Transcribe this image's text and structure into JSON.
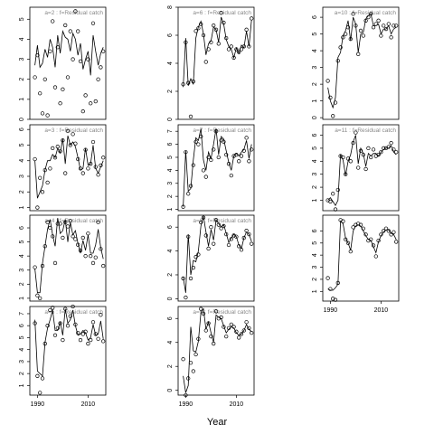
{
  "xlabel": "Year",
  "chart_data": [
    {
      "type": "scatter",
      "title": "a=2  :  f=Residual catch",
      "xlim": [
        1987,
        2017
      ],
      "ylim": [
        0,
        5.6
      ],
      "yticks": [
        0,
        1,
        2,
        3,
        4,
        5
      ],
      "x": [
        1989,
        1990,
        1991,
        1992,
        1993,
        1994,
        1995,
        1996,
        1997,
        1998,
        1999,
        2000,
        2001,
        2002,
        2003,
        2004,
        2005,
        2006,
        2007,
        2008,
        2009,
        2010,
        2011,
        2012,
        2013,
        2014,
        2015,
        2016
      ],
      "values": [
        2.1,
        3.2,
        1.3,
        0.3,
        2.0,
        0.2,
        3.4,
        4.9,
        1.6,
        3.6,
        0.8,
        1.5,
        4.7,
        2.1,
        4.4,
        3.0,
        5.4,
        4.4,
        2.9,
        0.4,
        1.2,
        3.0,
        0.8,
        4.8,
        0.9,
        2.0,
        2.6,
        3.4
      ],
      "fitted": [
        2.7,
        3.7,
        2.6,
        2.8,
        3.5,
        3.1,
        4.0,
        3.6,
        2.6,
        4.2,
        3.3,
        4.4,
        4.1,
        4.0,
        3.4,
        4.3,
        4.0,
        3.2,
        3.8,
        2.5,
        3.0,
        3.4,
        2.2,
        4.2,
        3.4,
        2.7,
        3.3,
        3.6
      ]
    },
    {
      "type": "scatter",
      "title": "a=3  :  f=Residual catch",
      "xlim": [
        1987,
        2017
      ],
      "ylim": [
        0.8,
        6.3
      ],
      "yticks": [
        1,
        2,
        3,
        4,
        5,
        6
      ],
      "x": [
        1989,
        1990,
        1991,
        1992,
        1993,
        1994,
        1995,
        1996,
        1997,
        1998,
        1999,
        2000,
        2001,
        2002,
        2003,
        2004,
        2005,
        2006,
        2007,
        2008,
        2009,
        2010,
        2011,
        2012,
        2013,
        2014,
        2015,
        2016
      ],
      "values": [
        4.1,
        1.0,
        2.9,
        2.0,
        3.4,
        2.6,
        3.5,
        4.8,
        4.2,
        4.9,
        4.6,
        5.3,
        3.2,
        5.9,
        5.0,
        5.7,
        5.1,
        4.1,
        3.5,
        3.2,
        4.7,
        3.5,
        3.8,
        5.2,
        3.6,
        3.1,
        3.7,
        4.2
      ],
      "fitted": [
        4.0,
        1.6,
        2.0,
        2.4,
        3.4,
        4.0,
        4.0,
        4.4,
        4.2,
        4.8,
        4.5,
        5.4,
        3.8,
        5.6,
        5.0,
        5.2,
        4.9,
        4.2,
        3.4,
        3.5,
        4.8,
        3.7,
        3.8,
        5.0,
        3.5,
        3.2,
        3.6,
        4.0
      ]
    },
    {
      "type": "scatter",
      "title": "a=4  :  f=Residual catch",
      "xlim": [
        1987,
        2017
      ],
      "ylim": [
        0.8,
        6.9
      ],
      "yticks": [
        1,
        2,
        3,
        4,
        5,
        6
      ],
      "x": [
        1989,
        1990,
        1991,
        1992,
        1993,
        1994,
        1995,
        1996,
        1997,
        1998,
        1999,
        2000,
        2001,
        2002,
        2003,
        2004,
        2005,
        2006,
        2007,
        2008,
        2009,
        2010,
        2011,
        2012,
        2013,
        2014,
        2015,
        2016
      ],
      "values": [
        3.2,
        1.2,
        1.0,
        3.3,
        4.7,
        6.4,
        6.0,
        5.4,
        3.5,
        6.3,
        6.3,
        5.3,
        6.4,
        6.1,
        6.5,
        5.4,
        5.2,
        4.8,
        4.4,
        5.3,
        4.0,
        5.6,
        4.0,
        3.5,
        3.9,
        6.4,
        4.5,
        3.3
      ],
      "fitted": [
        3.1,
        1.4,
        1.4,
        3.5,
        4.7,
        5.9,
        6.6,
        5.5,
        4.7,
        6.7,
        5.6,
        5.8,
        6.6,
        5.0,
        6.4,
        5.5,
        5.8,
        4.9,
        4.2,
        5.1,
        4.4,
        5.5,
        4.2,
        4.2,
        4.8,
        5.9,
        4.6,
        3.8
      ]
    },
    {
      "type": "scatter",
      "title": "a=5  :  f=Residual catch",
      "xlim": [
        1987,
        2017
      ],
      "ylim": [
        0.2,
        7.6
      ],
      "yticks": [
        1,
        2,
        3,
        4,
        5,
        6,
        7
      ],
      "xticks": [
        1990,
        2010
      ],
      "x": [
        1989,
        1990,
        1991,
        1992,
        1993,
        1994,
        1995,
        1996,
        1997,
        1998,
        1999,
        2000,
        2001,
        2002,
        2003,
        2004,
        2005,
        2006,
        2007,
        2008,
        2009,
        2010,
        2011,
        2012,
        2013,
        2014,
        2015,
        2016
      ],
      "values": [
        6.2,
        1.8,
        0.4,
        1.6,
        4.5,
        6.0,
        7.3,
        7.5,
        5.2,
        5.8,
        6.2,
        4.8,
        7.4,
        6.0,
        6.8,
        7.6,
        6.1,
        5.4,
        4.8,
        5.3,
        5.5,
        4.5,
        4.8,
        6.3,
        5.3,
        4.9,
        6.9,
        4.7
      ],
      "fitted": [
        6.5,
        2.2,
        2.0,
        1.8,
        4.6,
        5.8,
        6.5,
        7.3,
        5.6,
        5.6,
        6.3,
        5.2,
        7.4,
        6.2,
        6.5,
        7.3,
        6.0,
        5.2,
        5.3,
        5.6,
        5.4,
        4.8,
        5.0,
        6.1,
        5.2,
        5.3,
        6.4,
        4.9
      ]
    },
    {
      "type": "scatter",
      "title": "a=6  :  f=Residual catch",
      "xlim": [
        1987,
        2017
      ],
      "ylim": [
        0,
        8
      ],
      "yticks": [
        0,
        2,
        4,
        6,
        8
      ],
      "x": [
        1989,
        1990,
        1991,
        1992,
        1993,
        1994,
        1995,
        1996,
        1997,
        1998,
        1999,
        2000,
        2001,
        2002,
        2003,
        2004,
        2005,
        2006,
        2007,
        2008,
        2009,
        2010,
        2011,
        2012,
        2013,
        2014,
        2015,
        2016
      ],
      "values": [
        2.5,
        5.5,
        2.6,
        0.2,
        2.7,
        6.3,
        6.5,
        6.8,
        6.0,
        4.1,
        5.0,
        5.5,
        6.7,
        6.4,
        5.4,
        7.6,
        6.9,
        5.8,
        5.0,
        5.2,
        4.4,
        5.0,
        4.8,
        5.0,
        5.2,
        6.4,
        5.2,
        7.2
      ],
      "fitted": [
        2.3,
        5.8,
        2.4,
        2.9,
        2.5,
        5.8,
        6.6,
        7.0,
        6.1,
        4.6,
        5.4,
        5.6,
        6.6,
        6.4,
        5.5,
        7.3,
        6.8,
        5.7,
        5.2,
        5.0,
        4.4,
        5.1,
        4.7,
        5.3,
        5.1,
        6.3,
        5.2,
        7.1
      ]
    },
    {
      "type": "scatter",
      "title": "a=7  :  f=Residual catch",
      "xlim": [
        1987,
        2017
      ],
      "ylim": [
        0.9,
        7.5
      ],
      "yticks": [
        1,
        2,
        3,
        4,
        5,
        6,
        7
      ],
      "x": [
        1989,
        1990,
        1991,
        1992,
        1993,
        1994,
        1995,
        1996,
        1997,
        1998,
        1999,
        2000,
        2001,
        2002,
        2003,
        2004,
        2005,
        2006,
        2007,
        2008,
        2009,
        2010,
        2011,
        2012,
        2013,
        2014,
        2015,
        2016
      ],
      "values": [
        1.2,
        5.4,
        2.2,
        2.8,
        4.4,
        6.2,
        6.0,
        6.6,
        4.0,
        3.5,
        5.0,
        4.8,
        5.6,
        7.0,
        5.0,
        6.3,
        6.2,
        5.2,
        4.5,
        3.6,
        5.1,
        5.2,
        4.7,
        5.1,
        5.5,
        6.5,
        4.7,
        5.6
      ],
      "fitted": [
        1.2,
        5.5,
        2.4,
        2.6,
        4.8,
        6.5,
        6.3,
        7.2,
        4.8,
        4.0,
        5.4,
        4.9,
        6.0,
        7.2,
        5.2,
        6.6,
        6.4,
        5.5,
        4.6,
        4.0,
        5.1,
        5.3,
        5.1,
        5.4,
        5.6,
        6.3,
        4.9,
        6.0
      ]
    },
    {
      "type": "scatter",
      "title": "a=8  :  f=Residual catch",
      "xlim": [
        1987,
        2017
      ],
      "ylim": [
        -0.2,
        7
      ],
      "yticks": [
        0,
        2,
        4,
        6
      ],
      "x": [
        1989,
        1990,
        1991,
        1992,
        1993,
        1994,
        1995,
        1996,
        1997,
        1998,
        1999,
        2000,
        2001,
        2002,
        2003,
        2004,
        2005,
        2006,
        2007,
        2008,
        2009,
        2010,
        2011,
        2012,
        2013,
        2014,
        2015,
        2016
      ],
      "values": [
        1.7,
        0.1,
        5.2,
        1.7,
        2.6,
        3.5,
        3.7,
        6.4,
        6.8,
        5.3,
        4.2,
        6.0,
        4.6,
        6.6,
        6.2,
        5.9,
        6.1,
        5.4,
        4.5,
        5.0,
        5.3,
        5.2,
        4.4,
        4.1,
        5.1,
        5.7,
        5.4,
        4.6
      ],
      "fitted": [
        1.8,
        0.5,
        5.4,
        2.0,
        3.2,
        3.1,
        4.0,
        6.1,
        6.9,
        5.6,
        4.4,
        5.8,
        4.9,
        6.6,
        6.3,
        6.0,
        6.2,
        5.5,
        4.7,
        5.1,
        5.4,
        5.2,
        4.5,
        4.2,
        5.1,
        5.6,
        5.4,
        4.8
      ]
    },
    {
      "type": "scatter",
      "title": "a=9  :  f=Residual catch",
      "xlim": [
        1987,
        2017
      ],
      "ylim": [
        -0.4,
        7
      ],
      "yticks": [
        0,
        2,
        4,
        6
      ],
      "xticks": [
        1990,
        2010
      ],
      "x": [
        1989,
        1990,
        1991,
        1992,
        1993,
        1994,
        1995,
        1996,
        1997,
        1998,
        1999,
        2000,
        2001,
        2002,
        2003,
        2004,
        2005,
        2006,
        2007,
        2008,
        2009,
        2010,
        2011,
        2012,
        2013,
        2014,
        2015,
        2016
      ],
      "values": [
        2.6,
        -0.4,
        1.0,
        2.3,
        1.6,
        3.0,
        4.3,
        6.8,
        6.4,
        5.0,
        5.6,
        4.5,
        3.9,
        6.6,
        6.0,
        6.1,
        5.3,
        4.5,
        5.2,
        5.5,
        5.3,
        4.9,
        4.4,
        4.7,
        5.0,
        5.7,
        5.2,
        4.8
      ],
      "fitted": [
        1.2,
        -0.2,
        0.4,
        5.3,
        3.3,
        3.2,
        4.1,
        6.5,
        6.8,
        5.1,
        5.7,
        4.8,
        4.0,
        6.3,
        6.1,
        6.0,
        5.4,
        4.8,
        5.1,
        5.3,
        5.2,
        4.8,
        4.6,
        4.7,
        5.0,
        5.5,
        5.1,
        4.9
      ]
    },
    {
      "type": "scatter",
      "title": "a=10  :  f=Residual catch",
      "xlim": [
        1987,
        2017
      ],
      "ylim": [
        -0.1,
        6.6
      ],
      "yticks": [
        0,
        1,
        2,
        3,
        4,
        5,
        6
      ],
      "x": [
        1989,
        1990,
        1991,
        1992,
        1993,
        1994,
        1995,
        1996,
        1997,
        1998,
        1999,
        2000,
        2001,
        2002,
        2003,
        2004,
        2005,
        2006,
        2007,
        2008,
        2009,
        2010,
        2011,
        2012,
        2013,
        2014,
        2015,
        2016
      ],
      "values": [
        2.2,
        1.2,
        0.1,
        0.9,
        3.4,
        4.2,
        4.8,
        5.0,
        5.4,
        4.7,
        6.2,
        5.5,
        3.8,
        5.2,
        4.9,
        5.8,
        6.0,
        6.2,
        5.4,
        5.6,
        5.8,
        4.9,
        5.5,
        5.3,
        5.6,
        4.8,
        5.5,
        5.5
      ],
      "fitted": [
        1.8,
        1.0,
        0.6,
        1.2,
        3.6,
        3.9,
        4.9,
        5.2,
        5.8,
        4.6,
        6.0,
        5.6,
        3.9,
        5.0,
        5.1,
        5.9,
        6.1,
        6.2,
        5.5,
        5.5,
        5.6,
        5.0,
        5.3,
        5.3,
        5.5,
        5.0,
        5.3,
        5.4
      ]
    },
    {
      "type": "scatter",
      "title": "a=11  :  f=Residual catch",
      "xlim": [
        1987,
        2017
      ],
      "ylim": [
        0.2,
        6.8
      ],
      "yticks": [
        1,
        2,
        3,
        4,
        5,
        6
      ],
      "x": [
        1989,
        1990,
        1991,
        1992,
        1993,
        1994,
        1995,
        1996,
        1997,
        1998,
        1999,
        2000,
        2001,
        2002,
        2003,
        2004,
        2005,
        2006,
        2007,
        2008,
        2009,
        2010,
        2011,
        2012,
        2013,
        2014,
        2015,
        2016
      ],
      "values": [
        1.0,
        0.9,
        1.5,
        0.3,
        1.8,
        4.4,
        4.3,
        3.0,
        4.2,
        4.0,
        5.4,
        6.2,
        3.5,
        4.8,
        4.5,
        3.4,
        5.0,
        4.3,
        4.9,
        4.4,
        4.5,
        4.7,
        5.0,
        5.0,
        5.1,
        5.4,
        4.9,
        4.7
      ],
      "fitted": [
        1.0,
        1.2,
        0.9,
        0.6,
        1.0,
        4.5,
        4.1,
        2.9,
        4.0,
        4.5,
        5.5,
        6.0,
        3.8,
        5.0,
        4.6,
        3.6,
        4.6,
        4.4,
        4.6,
        4.6,
        4.4,
        4.7,
        4.9,
        5.0,
        5.0,
        5.2,
        4.7,
        4.5
      ]
    },
    {
      "type": "scatter",
      "xlim": [
        1987,
        2017
      ],
      "ylim": [
        0.2,
        7.3
      ],
      "yticks": [
        1,
        2,
        3,
        4,
        5,
        6
      ],
      "xticks": [
        1990,
        2010
      ],
      "x": [
        1989,
        1990,
        1991,
        1992,
        1993,
        1994,
        1995,
        1996,
        1997,
        1998,
        1999,
        2000,
        2001,
        2002,
        2003,
        2004,
        2005,
        2006,
        2007,
        2008,
        2009,
        2010,
        2011,
        2012,
        2013,
        2014,
        2015,
        2016
      ],
      "values": [
        2.1,
        1.2,
        0.4,
        0.3,
        1.7,
        6.9,
        6.8,
        5.3,
        5.0,
        4.3,
        6.3,
        6.5,
        6.6,
        6.5,
        6.2,
        5.7,
        5.2,
        5.3,
        4.8,
        3.9,
        5.2,
        5.7,
        6.0,
        6.2,
        6.0,
        5.7,
        5.9,
        5.1
      ],
      "fitted": [
        1.2,
        1.1,
        1.1,
        1.3,
        1.6,
        6.8,
        6.6,
        5.4,
        5.0,
        4.4,
        6.0,
        6.4,
        6.5,
        6.4,
        6.0,
        5.6,
        5.3,
        5.2,
        4.7,
        4.2,
        5.1,
        5.6,
        5.9,
        6.1,
        6.1,
        5.8,
        5.7,
        5.3
      ]
    }
  ]
}
